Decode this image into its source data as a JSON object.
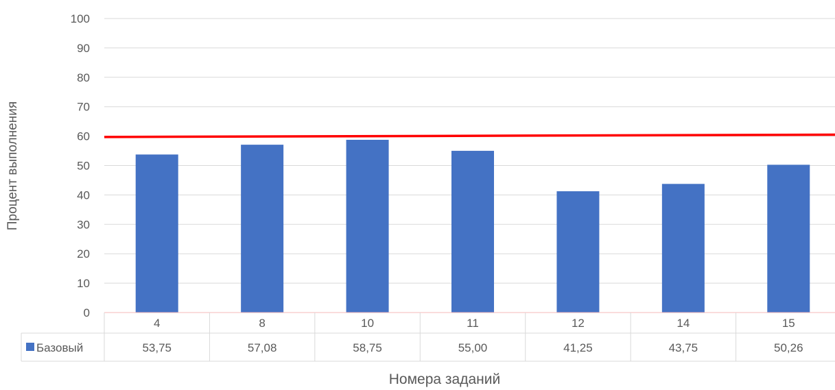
{
  "chart_data": {
    "type": "bar",
    "title": "",
    "xlabel": "Номера заданий",
    "ylabel": "Процент выполнения",
    "ylim": [
      0,
      100
    ],
    "yticks": [
      0,
      10,
      20,
      30,
      40,
      50,
      60,
      70,
      80,
      90,
      100
    ],
    "grid": true,
    "categories": [
      "4",
      "8",
      "10",
      "11",
      "12",
      "14",
      "15"
    ],
    "series": [
      {
        "name": "Базовый",
        "color": "#4472c4",
        "values": [
          53.75,
          57.08,
          58.75,
          55.0,
          41.25,
          43.75,
          50.26
        ],
        "value_labels": [
          "53,75",
          "57,08",
          "58,75",
          "55,00",
          "41,25",
          "43,75",
          "50,26"
        ]
      }
    ],
    "reference_line": {
      "value_start": 59.7,
      "value_end": 60.5,
      "color": "#ff0000"
    },
    "legend": "data-table"
  }
}
